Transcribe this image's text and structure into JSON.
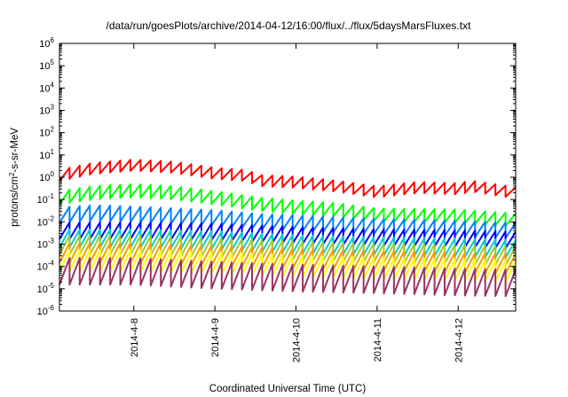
{
  "chart_data": {
    "type": "line",
    "title": "/data/run/goesPlots/archive/2014-04-12/16:00/flux/../flux/5daysMarsFluxes.txt",
    "xlabel": "Coordinated Universal Time (UTC)",
    "ylabel": {
      "prefix": "protons/cm",
      "sup": "2",
      "suffix": "-s-sr-MeV"
    },
    "y_scale": "log",
    "ylim": [
      1e-06,
      1000000.0
    ],
    "y_ticks": [
      {
        "value": 1e-06,
        "base": "10",
        "exp": "-6"
      },
      {
        "value": 1e-05,
        "base": "10",
        "exp": "-5"
      },
      {
        "value": 0.0001,
        "base": "10",
        "exp": "-4"
      },
      {
        "value": 0.001,
        "base": "10",
        "exp": "-3"
      },
      {
        "value": 0.01,
        "base": "10",
        "exp": "-2"
      },
      {
        "value": 0.1,
        "base": "10",
        "exp": "-1"
      },
      {
        "value": 1,
        "base": "10",
        "exp": "0"
      },
      {
        "value": 10,
        "base": "10",
        "exp": "1"
      },
      {
        "value": 100,
        "base": "10",
        "exp": "2"
      },
      {
        "value": 1000,
        "base": "10",
        "exp": "3"
      },
      {
        "value": 10000,
        "base": "10",
        "exp": "4"
      },
      {
        "value": 100000,
        "base": "10",
        "exp": "5"
      },
      {
        "value": 1000000,
        "base": "10",
        "exp": "6"
      }
    ],
    "x_range": [
      "2014-04-07 02:00",
      "2014-04-12 17:00"
    ],
    "x_ticks": [
      "2014-4-8",
      "2014-4-9",
      "2014-4-10",
      "2014-4-11",
      "2014-4-12"
    ],
    "x_tick_dates": [
      "2014-04-08",
      "2014-04-09",
      "2014-04-10",
      "2014-04-11",
      "2014-04-12"
    ],
    "sawtooth_period_hours": 3,
    "grid": false,
    "legend": "none",
    "series": [
      {
        "color": "#ff0000",
        "amp": 0.5,
        "points": [
          [
            "2014-04-07 02:00",
            1.2
          ],
          [
            "2014-04-07 12:00",
            2.5
          ],
          [
            "2014-04-08 00:00",
            3.5
          ],
          [
            "2014-04-08 12:00",
            2.8
          ],
          [
            "2014-04-09 00:00",
            1.5
          ],
          [
            "2014-04-09 09:00",
            1.2
          ],
          [
            "2014-04-09 14:00",
            0.7
          ],
          [
            "2014-04-10 00:00",
            0.6
          ],
          [
            "2014-04-10 12:00",
            0.4
          ],
          [
            "2014-04-11 00:00",
            0.22
          ],
          [
            "2014-04-11 06:00",
            0.28
          ],
          [
            "2014-04-11 12:00",
            0.35
          ],
          [
            "2014-04-12 00:00",
            0.3
          ],
          [
            "2014-04-12 04:00",
            0.4
          ],
          [
            "2014-04-12 17:00",
            0.2
          ]
        ]
      },
      {
        "color": "#00ff00",
        "amp": 0.6,
        "points": [
          [
            "2014-04-07 02:00",
            0.12
          ],
          [
            "2014-04-07 12:00",
            0.2
          ],
          [
            "2014-04-08 00:00",
            0.25
          ],
          [
            "2014-04-08 12:00",
            0.2
          ],
          [
            "2014-04-09 00:00",
            0.12
          ],
          [
            "2014-04-09 14:00",
            0.06
          ],
          [
            "2014-04-10 00:00",
            0.045
          ],
          [
            "2014-04-10 12:00",
            0.035
          ],
          [
            "2014-04-11 00:00",
            0.02
          ],
          [
            "2014-04-12 00:00",
            0.018
          ],
          [
            "2014-04-12 17:00",
            0.012
          ]
        ]
      },
      {
        "color": "#0080ff",
        "amp": 0.7,
        "points": [
          [
            "2014-04-07 02:00",
            0.02
          ],
          [
            "2014-04-07 12:00",
            0.025
          ],
          [
            "2014-04-08 00:00",
            0.022
          ],
          [
            "2014-04-09 00:00",
            0.015
          ],
          [
            "2014-04-09 14:00",
            0.01
          ],
          [
            "2014-04-10 00:00",
            0.009
          ],
          [
            "2014-04-11 00:00",
            0.006
          ],
          [
            "2014-04-12 00:00",
            0.005
          ],
          [
            "2014-04-12 17:00",
            0.004
          ]
        ]
      },
      {
        "color": "#0000ff",
        "amp": 0.75,
        "points": [
          [
            "2014-04-07 02:00",
            0.004
          ],
          [
            "2014-04-08 00:00",
            0.004
          ],
          [
            "2014-04-09 00:00",
            0.0035
          ],
          [
            "2014-04-10 00:00",
            0.0025
          ],
          [
            "2014-04-11 00:00",
            0.002
          ],
          [
            "2014-04-12 00:00",
            0.0018
          ],
          [
            "2014-04-12 17:00",
            0.0015
          ]
        ]
      },
      {
        "color": "#00cccc",
        "amp": 0.8,
        "points": [
          [
            "2014-04-07 02:00",
            0.0018
          ],
          [
            "2014-04-08 00:00",
            0.0018
          ],
          [
            "2014-04-09 00:00",
            0.0015
          ],
          [
            "2014-04-10 00:00",
            0.001
          ],
          [
            "2014-04-11 00:00",
            0.0008
          ],
          [
            "2014-04-12 00:00",
            0.0007
          ],
          [
            "2014-04-12 17:00",
            0.0006
          ]
        ]
      },
      {
        "color": "#99cc33",
        "amp": 0.85,
        "points": [
          [
            "2014-04-07 02:00",
            0.0009
          ],
          [
            "2014-04-08 00:00",
            0.0009
          ],
          [
            "2014-04-09 00:00",
            0.0007
          ],
          [
            "2014-04-10 00:00",
            0.0005
          ],
          [
            "2014-04-11 00:00",
            0.0004
          ],
          [
            "2014-04-12 00:00",
            0.00035
          ],
          [
            "2014-04-12 17:00",
            0.0003
          ]
        ]
      },
      {
        "color": "#ff9900",
        "amp": 0.9,
        "points": [
          [
            "2014-04-07 02:00",
            0.0004
          ],
          [
            "2014-04-08 00:00",
            0.0004
          ],
          [
            "2014-04-09 00:00",
            0.0003
          ],
          [
            "2014-04-10 00:00",
            0.00022
          ],
          [
            "2014-04-11 00:00",
            0.00018
          ],
          [
            "2014-04-12 00:00",
            0.00015
          ],
          [
            "2014-04-12 17:00",
            0.00013
          ]
        ]
      },
      {
        "color": "#ffff00",
        "amp": 0.95,
        "points": [
          [
            "2014-04-07 02:00",
            0.00018
          ],
          [
            "2014-04-08 00:00",
            0.00018
          ],
          [
            "2014-04-09 00:00",
            0.00014
          ],
          [
            "2014-04-10 00:00",
            0.0001
          ],
          [
            "2014-04-11 00:00",
            8e-05
          ],
          [
            "2014-04-12 00:00",
            7e-05
          ],
          [
            "2014-04-12 17:00",
            6e-05
          ]
        ]
      },
      {
        "color": "#993366",
        "amp": 1.2,
        "points": [
          [
            "2014-04-07 02:00",
            6e-05
          ],
          [
            "2014-04-08 00:00",
            6e-05
          ],
          [
            "2014-04-09 00:00",
            4e-05
          ],
          [
            "2014-04-10 00:00",
            3e-05
          ],
          [
            "2014-04-11 00:00",
            2.5e-05
          ],
          [
            "2014-04-12 00:00",
            2e-05
          ],
          [
            "2014-04-12 17:00",
            1.8e-05
          ]
        ]
      }
    ]
  }
}
